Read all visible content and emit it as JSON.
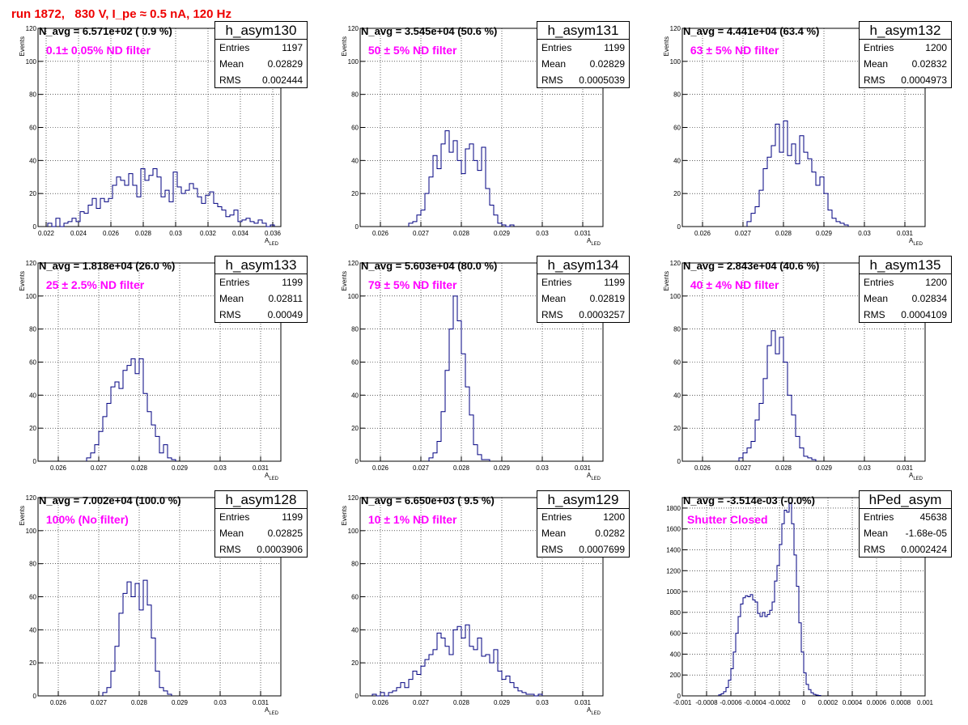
{
  "run_title": "run 1872,   830 V, I_pe ≈ 0.5 nA, 120 Hz",
  "colors": {
    "title": "#ee0000",
    "annotation": "#ff00ff",
    "histogram": "#000080"
  },
  "chart_data": [
    {
      "type": "histogram",
      "name": "h_asym130",
      "entries": "1197",
      "mean": "0.02829",
      "rms": "0.002444",
      "navg_text": "N_avg = 6.571e+02 ( 0.9 %)",
      "filter_text": " 0.1± 0.05% ND filter",
      "xlabel": "A",
      "xlabel_sub": "LED",
      "ylabel": "Events",
      "xlim": [
        0.0215,
        0.0365
      ],
      "ylim": [
        0,
        120
      ],
      "xticks": [
        0.022,
        0.024,
        0.026,
        0.028,
        0.03,
        0.032,
        0.034,
        0.036
      ],
      "xtick_labels": [
        "0.022",
        "0.024",
        "0.026",
        "0.028",
        "0.03",
        "0.032",
        "0.034",
        "0.036"
      ],
      "yticks": [
        0,
        20,
        40,
        60,
        80,
        100,
        120
      ],
      "ytick_labels": [
        "0",
        "20",
        "40",
        "60",
        "80",
        "100",
        "120"
      ],
      "bin_start": 0.0221,
      "bin_width": 0.00025,
      "counts": [
        2,
        0,
        5,
        0,
        2,
        3,
        5,
        3,
        9,
        8,
        13,
        17,
        11,
        17,
        15,
        17,
        25,
        30,
        28,
        25,
        32,
        25,
        18,
        35,
        28,
        31,
        35,
        30,
        18,
        22,
        15,
        33,
        24,
        20,
        22,
        26,
        23,
        18,
        14,
        19,
        21,
        14,
        12,
        10,
        6,
        7,
        10,
        3,
        4,
        5,
        3,
        2,
        4,
        2,
        0,
        1
      ]
    },
    {
      "type": "histogram",
      "name": "h_asym131",
      "entries": "1199",
      "mean": "0.02829",
      "rms": "0.0005039",
      "navg_text": "N_avg = 3.545e+04 (50.6 %)",
      "filter_text": " 50 ± 5% ND filter",
      "xlabel": "A",
      "xlabel_sub": "LED",
      "ylabel": "Events",
      "xlim": [
        0.0255,
        0.0315
      ],
      "ylim": [
        0,
        120
      ],
      "xticks": [
        0.026,
        0.027,
        0.028,
        0.029,
        0.03,
        0.031
      ],
      "xtick_labels": [
        "0.026",
        "0.027",
        "0.028",
        "0.029",
        "0.03",
        "0.031"
      ],
      "yticks": [
        0,
        20,
        40,
        60,
        80,
        100,
        120
      ],
      "ytick_labels": [
        "0",
        "20",
        "40",
        "60",
        "80",
        "100",
        "120"
      ],
      "bin_start": 0.0267,
      "bin_width": 0.0001,
      "counts": [
        2,
        3,
        7,
        10,
        20,
        30,
        43,
        35,
        50,
        58,
        45,
        52,
        40,
        32,
        47,
        50,
        40,
        34,
        48,
        23,
        13,
        7,
        2,
        1,
        0,
        1
      ]
    },
    {
      "type": "histogram",
      "name": "h_asym132",
      "entries": "1200",
      "mean": "0.02832",
      "rms": "0.0004973",
      "navg_text": "N_avg = 4.441e+04 (63.4 %)",
      "filter_text": " 63 ± 5% ND filter",
      "xlabel": "A",
      "xlabel_sub": "LED",
      "ylabel": "Events",
      "xlim": [
        0.0255,
        0.0315
      ],
      "ylim": [
        0,
        120
      ],
      "xticks": [
        0.026,
        0.027,
        0.028,
        0.029,
        0.03,
        0.031
      ],
      "xtick_labels": [
        "0.026",
        "0.027",
        "0.028",
        "0.029",
        "0.03",
        "0.031"
      ],
      "yticks": [
        0,
        20,
        40,
        60,
        80,
        100,
        120
      ],
      "ytick_labels": [
        "0",
        "20",
        "40",
        "60",
        "80",
        "100",
        "120"
      ],
      "bin_start": 0.0271,
      "bin_width": 0.0001,
      "counts": [
        3,
        8,
        12,
        22,
        35,
        42,
        49,
        62,
        45,
        64,
        43,
        50,
        38,
        55,
        45,
        41,
        33,
        25,
        30,
        20,
        10,
        5,
        3,
        2,
        1
      ]
    },
    {
      "type": "histogram",
      "name": "h_asym133",
      "entries": "1199",
      "mean": "0.02811",
      "rms": "0.00049",
      "navg_text": "N_avg = 1.818e+04 (26.0 %)",
      "filter_text": " 25 ± 2.5% ND filter",
      "xlabel": "A",
      "xlabel_sub": "LED",
      "ylabel": "Events",
      "xlim": [
        0.0255,
        0.0315
      ],
      "ylim": [
        0,
        120
      ],
      "xticks": [
        0.026,
        0.027,
        0.028,
        0.029,
        0.03,
        0.031
      ],
      "xtick_labels": [
        "0.026",
        "0.027",
        "0.028",
        "0.029",
        "0.03",
        "0.031"
      ],
      "yticks": [
        0,
        20,
        40,
        60,
        80,
        100,
        120
      ],
      "ytick_labels": [
        "0",
        "20",
        "40",
        "60",
        "80",
        "100",
        "120"
      ],
      "bin_start": 0.0267,
      "bin_width": 0.0001,
      "counts": [
        2,
        5,
        10,
        18,
        27,
        35,
        45,
        48,
        44,
        55,
        58,
        62,
        53,
        62,
        41,
        30,
        22,
        15,
        5,
        10,
        2,
        1
      ]
    },
    {
      "type": "histogram",
      "name": "h_asym134",
      "entries": "1199",
      "mean": "0.02819",
      "rms": "0.0003257",
      "navg_text": "N_avg = 5.603e+04 (80.0 %)",
      "filter_text": " 79 ± 5% ND filter",
      "xlabel": "A",
      "xlabel_sub": "LED",
      "ylabel": "Events",
      "xlim": [
        0.0255,
        0.0315
      ],
      "ylim": [
        0,
        120
      ],
      "xticks": [
        0.026,
        0.027,
        0.028,
        0.029,
        0.03,
        0.031
      ],
      "xtick_labels": [
        "0.026",
        "0.027",
        "0.028",
        "0.029",
        "0.03",
        "0.031"
      ],
      "yticks": [
        0,
        20,
        40,
        60,
        80,
        100,
        120
      ],
      "ytick_labels": [
        "0",
        "20",
        "40",
        "60",
        "80",
        "100",
        "120"
      ],
      "bin_start": 0.0272,
      "bin_width": 0.0001,
      "counts": [
        2,
        5,
        12,
        30,
        55,
        80,
        100,
        85,
        65,
        45,
        28,
        10,
        4,
        1,
        1
      ]
    },
    {
      "type": "histogram",
      "name": "h_asym135",
      "entries": "1200",
      "mean": "0.02834",
      "rms": "0.0004109",
      "navg_text": "N_avg = 2.843e+04 (40.6 %)",
      "filter_text": " 40 ± 4% ND filter",
      "xlabel": "A",
      "xlabel_sub": "LED",
      "ylabel": "Events",
      "xlim": [
        0.0255,
        0.0315
      ],
      "ylim": [
        0,
        120
      ],
      "xticks": [
        0.026,
        0.027,
        0.028,
        0.029,
        0.03,
        0.031
      ],
      "xtick_labels": [
        "0.026",
        "0.027",
        "0.028",
        "0.029",
        "0.03",
        "0.031"
      ],
      "yticks": [
        0,
        20,
        40,
        60,
        80,
        100,
        120
      ],
      "ytick_labels": [
        "0",
        "20",
        "40",
        "60",
        "80",
        "100",
        "120"
      ],
      "bin_start": 0.0269,
      "bin_width": 0.0001,
      "counts": [
        2,
        5,
        8,
        12,
        25,
        35,
        50,
        70,
        79,
        65,
        75,
        60,
        40,
        28,
        15,
        8,
        3,
        2,
        1
      ]
    },
    {
      "type": "histogram",
      "name": "h_asym128",
      "entries": "1199",
      "mean": "0.02825",
      "rms": "0.0003906",
      "navg_text": "N_avg = 7.002e+04 (100.0 %)",
      "filter_text": " 100% (No filter)",
      "xlabel": "A",
      "xlabel_sub": "LED",
      "ylabel": "Events",
      "xlim": [
        0.0255,
        0.0315
      ],
      "ylim": [
        0,
        120
      ],
      "xticks": [
        0.026,
        0.027,
        0.028,
        0.029,
        0.03,
        0.031
      ],
      "xtick_labels": [
        "0.026",
        "0.027",
        "0.028",
        "0.029",
        "0.03",
        "0.031"
      ],
      "yticks": [
        0,
        20,
        40,
        60,
        80,
        100,
        120
      ],
      "ytick_labels": [
        "0",
        "20",
        "40",
        "60",
        "80",
        "100",
        "120"
      ],
      "bin_start": 0.0271,
      "bin_width": 0.0001,
      "counts": [
        2,
        5,
        15,
        30,
        50,
        62,
        69,
        60,
        68,
        52,
        70,
        55,
        35,
        15,
        5,
        3,
        1
      ]
    },
    {
      "type": "histogram",
      "name": "h_asym129",
      "entries": "1200",
      "mean": "0.0282",
      "rms": "0.0007699",
      "navg_text": "N_avg = 6.650e+03 ( 9.5 %)",
      "filter_text": " 10 ± 1% ND filter",
      "xlabel": "A",
      "xlabel_sub": "LED",
      "ylabel": "Events",
      "xlim": [
        0.0255,
        0.0315
      ],
      "ylim": [
        0,
        120
      ],
      "xticks": [
        0.026,
        0.027,
        0.028,
        0.029,
        0.03,
        0.031
      ],
      "xtick_labels": [
        "0.026",
        "0.027",
        "0.028",
        "0.029",
        "0.03",
        "0.031"
      ],
      "yticks": [
        0,
        20,
        40,
        60,
        80,
        100,
        120
      ],
      "ytick_labels": [
        "0",
        "20",
        "40",
        "60",
        "80",
        "100",
        "120"
      ],
      "bin_start": 0.0258,
      "bin_width": 0.0001,
      "counts": [
        1,
        0,
        2,
        0,
        2,
        3,
        5,
        8,
        5,
        10,
        15,
        13,
        18,
        22,
        25,
        28,
        38,
        35,
        30,
        25,
        40,
        42,
        35,
        43,
        30,
        28,
        35,
        24,
        25,
        20,
        28,
        15,
        10,
        12,
        8,
        5,
        3,
        2,
        1,
        1,
        0,
        1
      ]
    },
    {
      "type": "histogram",
      "name": "hPed_asym",
      "entries": "45638",
      "mean": "-1.68e-05",
      "rms": "0.0002424",
      "navg_text": "N_avg = -3.514e-03 (-0.0%)",
      "filter_text": "Shutter Closed",
      "xlabel": "",
      "xlabel_sub": "",
      "ylabel": "",
      "xlim": [
        -0.001,
        0.001
      ],
      "ylim": [
        0,
        1900
      ],
      "xticks": [
        -0.001,
        -0.0008,
        -0.0006,
        -0.0004,
        -0.0002,
        0,
        0.0002,
        0.0004,
        0.0006,
        0.0008,
        0.001
      ],
      "xtick_labels": [
        "-0.001",
        "-0.0008",
        "-0.0006",
        "-0.0004",
        "-0.0002",
        "0",
        "0.0002",
        "0.0004",
        "0.0006",
        "0.0008",
        "0.001"
      ],
      "yticks": [
        0,
        200,
        400,
        600,
        800,
        1000,
        1200,
        1400,
        1600,
        1800
      ],
      "ytick_labels": [
        "0",
        "200",
        "400",
        "600",
        "800",
        "1000",
        "1200",
        "1400",
        "1600",
        "1800"
      ],
      "bin_start": -0.0007,
      "bin_width": 2e-05,
      "counts": [
        10,
        20,
        40,
        80,
        150,
        260,
        420,
        600,
        760,
        880,
        940,
        960,
        950,
        970,
        920,
        900,
        790,
        760,
        800,
        760,
        780,
        820,
        900,
        1100,
        1250,
        1450,
        1650,
        1780,
        1760,
        1850,
        1650,
        1350,
        1050,
        700,
        420,
        220,
        110,
        60,
        30,
        15,
        8,
        4
      ]
    }
  ]
}
